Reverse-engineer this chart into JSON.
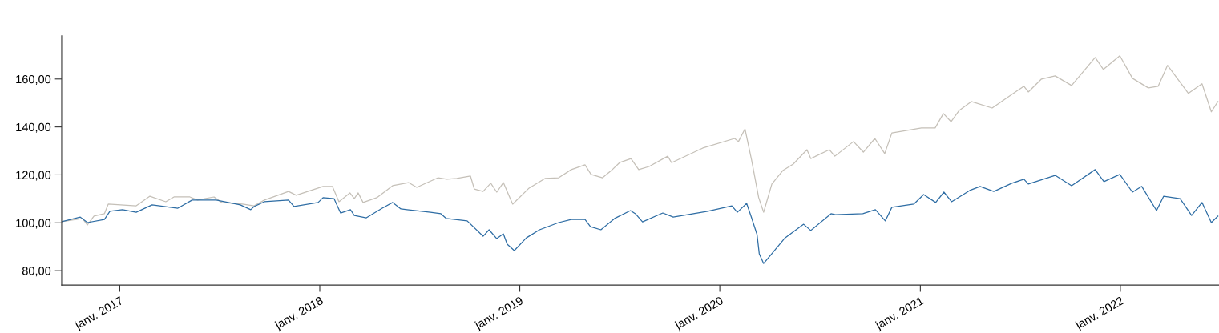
{
  "chart_data": {
    "type": "line",
    "xlim": [
      "2016-09-17",
      "2022-06-30"
    ],
    "xticks": [
      {
        "value": "2017-01-01",
        "label": "janv. 2017"
      },
      {
        "value": "2018-01-01",
        "label": "janv. 2018"
      },
      {
        "value": "2019-01-01",
        "label": "janv. 2019"
      },
      {
        "value": "2020-01-01",
        "label": "janv. 2020"
      },
      {
        "value": "2021-01-01",
        "label": "janv. 2021"
      },
      {
        "value": "2022-01-01",
        "label": "janv. 2022"
      }
    ],
    "ylim": [
      74,
      178
    ],
    "yticks": [
      {
        "value": 80,
        "label": "80,00"
      },
      {
        "value": 100,
        "label": "100,00"
      },
      {
        "value": 120,
        "label": "120,00"
      },
      {
        "value": 140,
        "label": "140,00"
      },
      {
        "value": 160,
        "label": "160,00"
      }
    ],
    "marker": "none",
    "line_style": "solid",
    "series": [
      {
        "color": "#c5c0b8",
        "x": [
          "2016-09-17",
          "2016-10-25",
          "2016-11-03",
          "2016-11-15",
          "2016-12-04",
          "2016-12-11",
          "2017-01-31",
          "2017-02-25",
          "2017-03-26",
          "2017-04-10",
          "2017-05-09",
          "2017-05-23",
          "2017-06-22",
          "2017-07-06",
          "2017-08-13",
          "2017-09-03",
          "2017-09-22",
          "2017-11-05",
          "2017-11-19",
          "2018-01-07",
          "2018-01-24",
          "2018-02-05",
          "2018-02-25",
          "2018-03-05",
          "2018-03-12",
          "2018-03-21",
          "2018-04-15",
          "2018-05-14",
          "2018-06-12",
          "2018-06-27",
          "2018-08-05",
          "2018-08-21",
          "2018-09-08",
          "2018-10-03",
          "2018-10-10",
          "2018-10-26",
          "2018-11-09",
          "2018-11-20",
          "2018-12-02",
          "2018-12-19",
          "2019-01-18",
          "2019-02-16",
          "2019-03-13",
          "2019-04-05",
          "2019-04-30",
          "2019-05-11",
          "2019-06-01",
          "2019-06-17",
          "2019-07-02",
          "2019-07-23",
          "2019-08-06",
          "2019-08-25",
          "2019-09-28",
          "2019-10-05",
          "2019-12-01",
          "2020-01-28",
          "2020-02-04",
          "2020-02-16",
          "2020-02-28",
          "2020-03-12",
          "2020-03-21",
          "2020-04-05",
          "2020-04-25",
          "2020-05-14",
          "2020-06-08",
          "2020-06-15",
          "2020-07-19",
          "2020-07-29",
          "2020-09-01",
          "2020-09-19",
          "2020-10-10",
          "2020-10-28",
          "2020-11-10",
          "2021-01-03",
          "2021-01-28",
          "2021-02-12",
          "2021-02-26",
          "2021-03-13",
          "2021-04-04",
          "2021-05-12",
          "2021-06-17",
          "2021-07-09",
          "2021-07-17",
          "2021-08-10",
          "2021-09-04",
          "2021-10-04",
          "2021-11-16",
          "2021-12-01",
          "2021-12-31",
          "2022-01-23",
          "2022-02-21",
          "2022-03-11",
          "2022-03-28",
          "2022-05-05",
          "2022-05-30",
          "2022-06-16",
          "2022-06-28"
        ],
        "values": [
          100.5,
          101.8,
          99.1,
          102.8,
          103.8,
          107.8,
          107.1,
          111.1,
          108.8,
          110.8,
          110.8,
          109.5,
          110.8,
          108.5,
          107.8,
          107.1,
          109.5,
          113.1,
          111.5,
          115.2,
          115.2,
          108.8,
          112.5,
          110.1,
          112.5,
          108.5,
          110.5,
          115.5,
          116.8,
          114.8,
          118.8,
          118.2,
          118.5,
          119.5,
          114.1,
          113.1,
          116.5,
          112.8,
          116.8,
          107.8,
          114.5,
          118.5,
          118.8,
          122.2,
          124.2,
          120.2,
          118.8,
          121.8,
          125.1,
          126.8,
          122.2,
          123.5,
          127.8,
          125.1,
          131.2,
          135.2,
          133.9,
          139.2,
          126.2,
          110.5,
          104.4,
          116.2,
          121.8,
          124.5,
          130.5,
          126.8,
          130.5,
          127.8,
          133.9,
          129.5,
          135.2,
          128.9,
          137.5,
          139.6,
          139.6,
          145.6,
          142.2,
          146.9,
          150.6,
          147.9,
          153.6,
          157.0,
          154.6,
          160.0,
          161.3,
          157.3,
          169.0,
          164.0,
          169.7,
          160.3,
          156.3,
          157.0,
          165.7,
          154.0,
          158.0,
          146.3,
          150.6
        ]
      },
      {
        "color": "#2e6da4",
        "x": [
          "2016-09-17",
          "2016-10-21",
          "2016-11-03",
          "2016-12-04",
          "2016-12-14",
          "2017-01-06",
          "2017-01-31",
          "2017-03-01",
          "2017-04-17",
          "2017-05-13",
          "2017-06-26",
          "2017-08-09",
          "2017-08-28",
          "2017-09-03",
          "2017-09-22",
          "2017-11-05",
          "2017-11-15",
          "2017-12-29",
          "2018-01-07",
          "2018-01-27",
          "2018-02-08",
          "2018-02-26",
          "2018-03-05",
          "2018-03-27",
          "2018-04-25",
          "2018-05-14",
          "2018-05-29",
          "2018-07-22",
          "2018-08-10",
          "2018-08-20",
          "2018-09-27",
          "2018-10-26",
          "2018-11-06",
          "2018-11-20",
          "2018-12-02",
          "2018-12-09",
          "2018-12-22",
          "2019-01-13",
          "2019-02-06",
          "2019-03-13",
          "2019-04-05",
          "2019-04-30",
          "2019-05-10",
          "2019-05-29",
          "2019-06-23",
          "2019-07-22",
          "2019-07-31",
          "2019-08-13",
          "2019-09-19",
          "2019-10-08",
          "2019-12-10",
          "2020-01-23",
          "2020-02-02",
          "2020-02-19",
          "2020-02-27",
          "2020-03-09",
          "2020-03-13",
          "2020-03-21",
          "2020-04-05",
          "2020-04-29",
          "2020-06-02",
          "2020-06-15",
          "2020-07-22",
          "2020-07-30",
          "2020-09-18",
          "2020-10-11",
          "2020-10-29",
          "2020-11-10",
          "2020-12-20",
          "2021-01-07",
          "2021-01-29",
          "2021-02-13",
          "2021-02-27",
          "2021-04-01",
          "2021-04-20",
          "2021-05-15",
          "2021-06-17",
          "2021-07-09",
          "2021-07-17",
          "2021-09-04",
          "2021-10-04",
          "2021-11-16",
          "2021-12-02",
          "2021-12-31",
          "2022-01-23",
          "2022-02-09",
          "2022-03-08",
          "2022-03-21",
          "2022-04-20",
          "2022-05-11",
          "2022-05-30",
          "2022-06-16",
          "2022-06-28"
        ],
        "values": [
          100.5,
          102.4,
          100.1,
          101.4,
          104.8,
          105.5,
          104.4,
          107.5,
          106.1,
          109.5,
          109.5,
          107.5,
          105.5,
          106.8,
          108.8,
          109.5,
          106.8,
          108.5,
          110.5,
          110.1,
          104.1,
          105.5,
          103.1,
          102.1,
          106.1,
          108.5,
          105.8,
          104.4,
          103.8,
          101.8,
          100.8,
          94.4,
          97.1,
          93.4,
          95.4,
          91.1,
          88.4,
          93.7,
          97.1,
          100.1,
          101.4,
          101.4,
          98.4,
          97.1,
          101.8,
          105.1,
          103.8,
          100.4,
          104.1,
          102.4,
          104.8,
          107.1,
          104.4,
          108.1,
          102.8,
          95.1,
          87.1,
          83.0,
          87.1,
          93.7,
          99.4,
          96.8,
          103.8,
          103.4,
          103.8,
          105.5,
          100.8,
          106.5,
          107.8,
          111.8,
          108.5,
          112.8,
          108.8,
          113.5,
          115.2,
          113.1,
          116.5,
          118.2,
          116.2,
          119.8,
          115.5,
          122.2,
          117.2,
          120.2,
          112.8,
          115.2,
          105.1,
          111.1,
          110.1,
          103.1,
          108.5,
          100.1,
          102.8
        ]
      }
    ]
  }
}
